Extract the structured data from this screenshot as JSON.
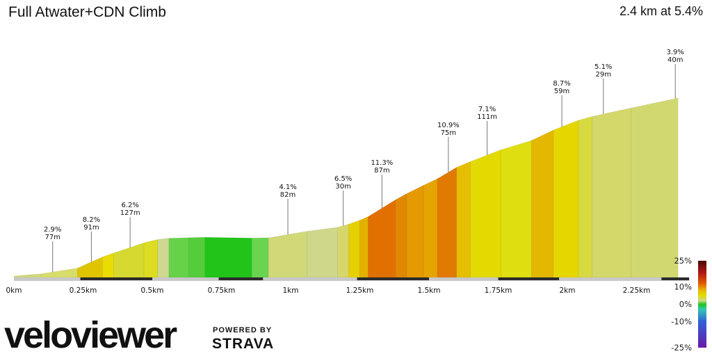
{
  "header": {
    "title": "Full Atwater+CDN Climb",
    "summary": "2.4 km at 5.4%"
  },
  "branding": {
    "logo_text": "veloviewer",
    "powered_by": "POWERED BY",
    "partner": "STRAVA"
  },
  "colors": {
    "ground_base": "#c8c8c8",
    "road_marker": "#2b2b2b",
    "logo_red": "#e8141b",
    "strava_orange": "#fc4c02"
  },
  "chart_data": {
    "type": "area",
    "title": "",
    "xlabel": "",
    "ylabel": "",
    "x_unit": "km",
    "xlim": [
      0,
      2.44
    ],
    "x_ticks": [
      {
        "value": 0,
        "label": "0km"
      },
      {
        "value": 0.25,
        "label": "0.25km"
      },
      {
        "value": 0.5,
        "label": "0.5km"
      },
      {
        "value": 0.75,
        "label": "0.75km"
      },
      {
        "value": 1.0,
        "label": "1km"
      },
      {
        "value": 1.25,
        "label": "1.25km"
      },
      {
        "value": 1.5,
        "label": "1.5km"
      },
      {
        "value": 1.75,
        "label": "1.75km"
      },
      {
        "value": 2.0,
        "label": "2km"
      },
      {
        "value": 2.25,
        "label": "2.25km"
      }
    ],
    "segments": [
      {
        "x_start": 0.0,
        "x_end": 0.1,
        "grade": 1.5,
        "color": "#d0d878"
      },
      {
        "x_start": 0.1,
        "x_end": 0.23,
        "grade": 2.9,
        "color": "#d8dc6a"
      },
      {
        "x_start": 0.23,
        "x_end": 0.32,
        "grade": 8.2,
        "color": "#e0c400"
      },
      {
        "x_start": 0.32,
        "x_end": 0.36,
        "grade": 6.4,
        "color": "#e8dc00"
      },
      {
        "x_start": 0.36,
        "x_end": 0.47,
        "grade": 6.2,
        "color": "#d6da30"
      },
      {
        "x_start": 0.47,
        "x_end": 0.52,
        "grade": 4.5,
        "color": "#dcdc20"
      },
      {
        "x_start": 0.52,
        "x_end": 0.56,
        "grade": 2.0,
        "color": "#cfd890"
      },
      {
        "x_start": 0.56,
        "x_end": 0.63,
        "grade": 0.5,
        "color": "#66d24a"
      },
      {
        "x_start": 0.63,
        "x_end": 0.69,
        "grade": 0.5,
        "color": "#55cc3a"
      },
      {
        "x_start": 0.69,
        "x_end": 0.86,
        "grade": -0.3,
        "color": "#22c41a"
      },
      {
        "x_start": 0.86,
        "x_end": 0.92,
        "grade": 0.3,
        "color": "#6ad450"
      },
      {
        "x_start": 0.92,
        "x_end": 1.06,
        "grade": 3.1,
        "color": "#d0d878"
      },
      {
        "x_start": 1.06,
        "x_end": 1.17,
        "grade": 2.4,
        "color": "#cfd78a"
      },
      {
        "x_start": 1.17,
        "x_end": 1.21,
        "grade": 5.2,
        "color": "#d6d66a"
      },
      {
        "x_start": 1.21,
        "x_end": 1.25,
        "grade": 6.5,
        "color": "#e6d000"
      },
      {
        "x_start": 1.25,
        "x_end": 1.28,
        "grade": 8.0,
        "color": "#e4b000"
      },
      {
        "x_start": 1.28,
        "x_end": 1.38,
        "grade": 11.3,
        "color": "#e27000"
      },
      {
        "x_start": 1.38,
        "x_end": 1.42,
        "grade": 10.0,
        "color": "#e08800"
      },
      {
        "x_start": 1.42,
        "x_end": 1.48,
        "grade": 9.2,
        "color": "#e49a00"
      },
      {
        "x_start": 1.48,
        "x_end": 1.53,
        "grade": 8.6,
        "color": "#e6a400"
      },
      {
        "x_start": 1.53,
        "x_end": 1.6,
        "grade": 10.9,
        "color": "#e07a00"
      },
      {
        "x_start": 1.6,
        "x_end": 1.65,
        "grade": 7.6,
        "color": "#e6be00"
      },
      {
        "x_start": 1.65,
        "x_end": 1.76,
        "grade": 7.1,
        "color": "#e2da00"
      },
      {
        "x_start": 1.76,
        "x_end": 1.87,
        "grade": 5.6,
        "color": "#dfde10"
      },
      {
        "x_start": 1.87,
        "x_end": 1.95,
        "grade": 8.7,
        "color": "#e4b800"
      },
      {
        "x_start": 1.95,
        "x_end": 2.04,
        "grade": 7.2,
        "color": "#e6d600"
      },
      {
        "x_start": 2.04,
        "x_end": 2.09,
        "grade": 5.1,
        "color": "#d6da40"
      },
      {
        "x_start": 2.09,
        "x_end": 2.23,
        "grade": 4.0,
        "color": "#d4d86a"
      },
      {
        "x_start": 2.23,
        "x_end": 2.4,
        "grade": 3.9,
        "color": "#d2d870"
      }
    ],
    "annotations": [
      {
        "x": 0.14,
        "grade_label": "2.9%",
        "length_label": "77m"
      },
      {
        "x": 0.28,
        "grade_label": "8.2%",
        "length_label": "91m"
      },
      {
        "x": 0.42,
        "grade_label": "6.2%",
        "length_label": "127m"
      },
      {
        "x": 0.99,
        "grade_label": "4.1%",
        "length_label": "82m"
      },
      {
        "x": 1.19,
        "grade_label": "6.5%",
        "length_label": "30m"
      },
      {
        "x": 1.33,
        "grade_label": "11.3%",
        "length_label": "87m"
      },
      {
        "x": 1.57,
        "grade_label": "10.9%",
        "length_label": "75m"
      },
      {
        "x": 1.71,
        "grade_label": "7.1%",
        "length_label": "111m"
      },
      {
        "x": 1.98,
        "grade_label": "8.7%",
        "length_label": "59m"
      },
      {
        "x": 2.13,
        "grade_label": "5.1%",
        "length_label": "29m"
      },
      {
        "x": 2.39,
        "grade_label": "3.9%",
        "length_label": "40m"
      }
    ],
    "road_markers": [
      [
        0.24,
        0.5
      ],
      [
        0.74,
        0.9
      ],
      [
        1.24,
        1.5
      ],
      [
        1.75,
        1.97
      ],
      [
        2.34,
        2.44
      ]
    ],
    "grade_scale": {
      "ticks": [
        {
          "value": 25,
          "label": "25%"
        },
        {
          "value": 10,
          "label": "10%"
        },
        {
          "value": 0,
          "label": "0%"
        },
        {
          "value": -10,
          "label": "-10%"
        },
        {
          "value": -25,
          "label": "-25%"
        }
      ],
      "range": [
        -25,
        25
      ],
      "stops": [
        {
          "value": 25,
          "color": "#4a0a0a"
        },
        {
          "value": 18,
          "color": "#b01818"
        },
        {
          "value": 12,
          "color": "#e25a00"
        },
        {
          "value": 8,
          "color": "#e6b800"
        },
        {
          "value": 5,
          "color": "#e2dc00"
        },
        {
          "value": 2,
          "color": "#d0d88a"
        },
        {
          "value": 0,
          "color": "#22c41a"
        },
        {
          "value": -3,
          "color": "#30c8b0"
        },
        {
          "value": -10,
          "color": "#3060d8"
        },
        {
          "value": -25,
          "color": "#6a1aa8"
        }
      ]
    }
  }
}
